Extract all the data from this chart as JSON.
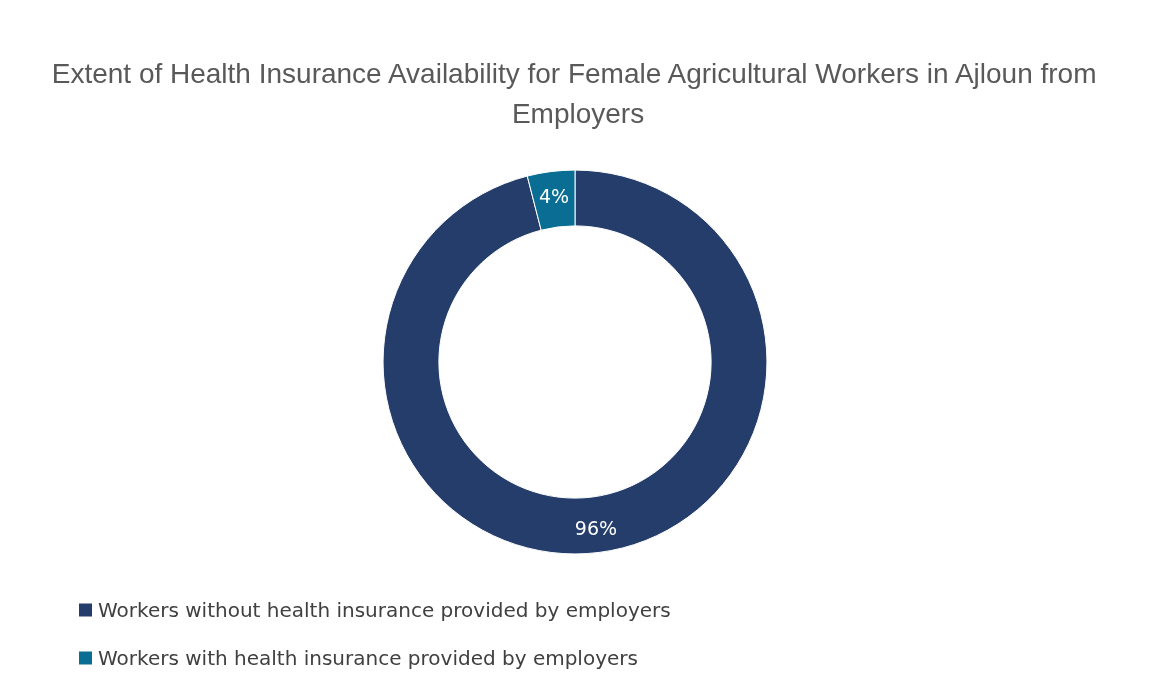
{
  "chart_data": {
    "type": "donut",
    "title": "Extent of Health Insurance Availability for Female Agricultural Workers in Ajloun from Employers",
    "categories": [
      "Workers without health insurance provided by employers",
      "Workers with health insurance provided by employers"
    ],
    "values": [
      96,
      4
    ],
    "colors": [
      "#253d6b",
      "#0a6e94"
    ],
    "value_labels": [
      "96%",
      "4%"
    ],
    "legend": "bottom left"
  }
}
